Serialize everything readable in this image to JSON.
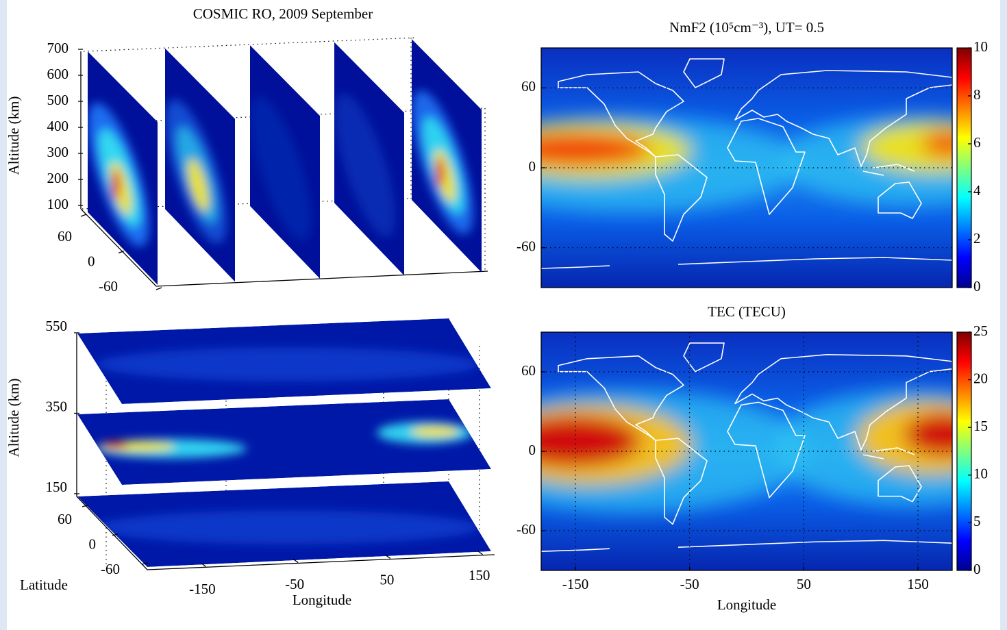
{
  "chart_data": [
    {
      "type": "slices3d",
      "title": "COSMIC RO, 2009 September",
      "zlabel": "Altitude (km)",
      "zlim": [
        100,
        700
      ],
      "zticks": [
        100,
        200,
        300,
        400,
        500,
        600,
        700
      ],
      "ylim": [
        -60,
        60
      ],
      "yticks": [
        60,
        0,
        -60
      ]
    },
    {
      "type": "map",
      "title": "NmF2 (10⁵cm⁻³),  UT= 0.5",
      "xlim": [
        -180,
        180
      ],
      "ylim": [
        -90,
        90
      ],
      "yticks": [
        60,
        0,
        -60
      ],
      "clim": [
        0,
        10
      ],
      "cticks": [
        0,
        2,
        4,
        6,
        8,
        10
      ],
      "grid": true
    },
    {
      "type": "layers3d",
      "zlabel": "Altitude (km)",
      "zlim": [
        150,
        550
      ],
      "zticks": [
        150,
        350,
        550
      ],
      "ylabel": "Latitude",
      "ylim": [
        -60,
        60
      ],
      "yticks": [
        60,
        0,
        -60
      ],
      "xlabel": "Longitude",
      "xlim": [
        -180,
        180
      ],
      "xticks": [
        -150,
        -50,
        50,
        150
      ]
    },
    {
      "type": "map",
      "title": "TEC (TECU)",
      "xlabel": "Longitude",
      "xlim": [
        -180,
        180
      ],
      "ylim": [
        -90,
        90
      ],
      "xticks": [
        -150,
        -50,
        50,
        150
      ],
      "yticks": [
        60,
        0,
        -60
      ],
      "clim": [
        0,
        25
      ],
      "cticks": [
        0,
        5,
        10,
        15,
        20,
        25
      ],
      "grid": true
    }
  ]
}
